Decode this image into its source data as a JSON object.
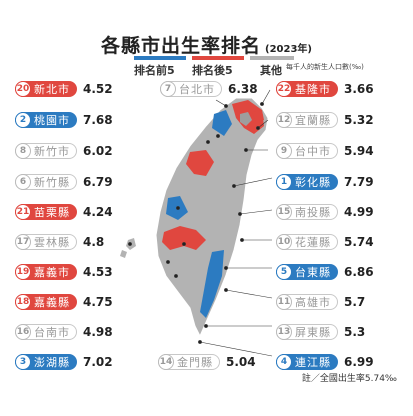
{
  "chart_data": {
    "type": "choropleth-ranking",
    "title": "各縣市出生率排名",
    "subtitle": "(2023年)",
    "unit_note": "每千人的新生人口數(‰)",
    "legend": [
      {
        "label": "排名前5",
        "color": "#2c7bc1"
      },
      {
        "label": "排名後5",
        "color": "#e0473f"
      },
      {
        "label": "其他",
        "color": "#b3b3b3"
      }
    ],
    "footnote": "註／全國出生率5.74‰",
    "items": [
      {
        "name": "新北市",
        "rank": "20",
        "value": "4.52",
        "group": "red"
      },
      {
        "name": "桃園市",
        "rank": "2",
        "value": "7.68",
        "group": "blue"
      },
      {
        "name": "新竹市",
        "rank": "8",
        "value": "6.02",
        "group": "gray"
      },
      {
        "name": "新竹縣",
        "rank": "6",
        "value": "6.79",
        "group": "gray"
      },
      {
        "name": "苗栗縣",
        "rank": "21",
        "value": "4.24",
        "group": "red"
      },
      {
        "name": "雲林縣",
        "rank": "17",
        "value": "4.8",
        "group": "gray"
      },
      {
        "name": "嘉義市",
        "rank": "19",
        "value": "4.53",
        "group": "red"
      },
      {
        "name": "嘉義縣",
        "rank": "18",
        "value": "4.75",
        "group": "red"
      },
      {
        "name": "台南市",
        "rank": "16",
        "value": "4.98",
        "group": "gray"
      },
      {
        "name": "澎湖縣",
        "rank": "3",
        "value": "7.02",
        "group": "blue"
      },
      {
        "name": "台北市",
        "rank": "7",
        "value": "6.38",
        "group": "gray"
      },
      {
        "name": "金門縣",
        "rank": "14",
        "value": "5.04",
        "group": "gray"
      },
      {
        "name": "基隆市",
        "rank": "22",
        "value": "3.66",
        "group": "red"
      },
      {
        "name": "宜蘭縣",
        "rank": "12",
        "value": "5.32",
        "group": "gray"
      },
      {
        "name": "台中市",
        "rank": "9",
        "value": "5.94",
        "group": "gray"
      },
      {
        "name": "彰化縣",
        "rank": "1",
        "value": "7.79",
        "group": "blue"
      },
      {
        "name": "南投縣",
        "rank": "15",
        "value": "4.99",
        "group": "gray"
      },
      {
        "name": "花蓮縣",
        "rank": "10",
        "value": "5.74",
        "group": "gray"
      },
      {
        "name": "台東縣",
        "rank": "5",
        "value": "6.86",
        "group": "blue"
      },
      {
        "name": "高雄市",
        "rank": "11",
        "value": "5.7",
        "group": "gray"
      },
      {
        "name": "屏東縣",
        "rank": "13",
        "value": "5.3",
        "group": "gray"
      },
      {
        "name": "連江縣",
        "rank": "4",
        "value": "6.99",
        "group": "blue"
      }
    ]
  }
}
